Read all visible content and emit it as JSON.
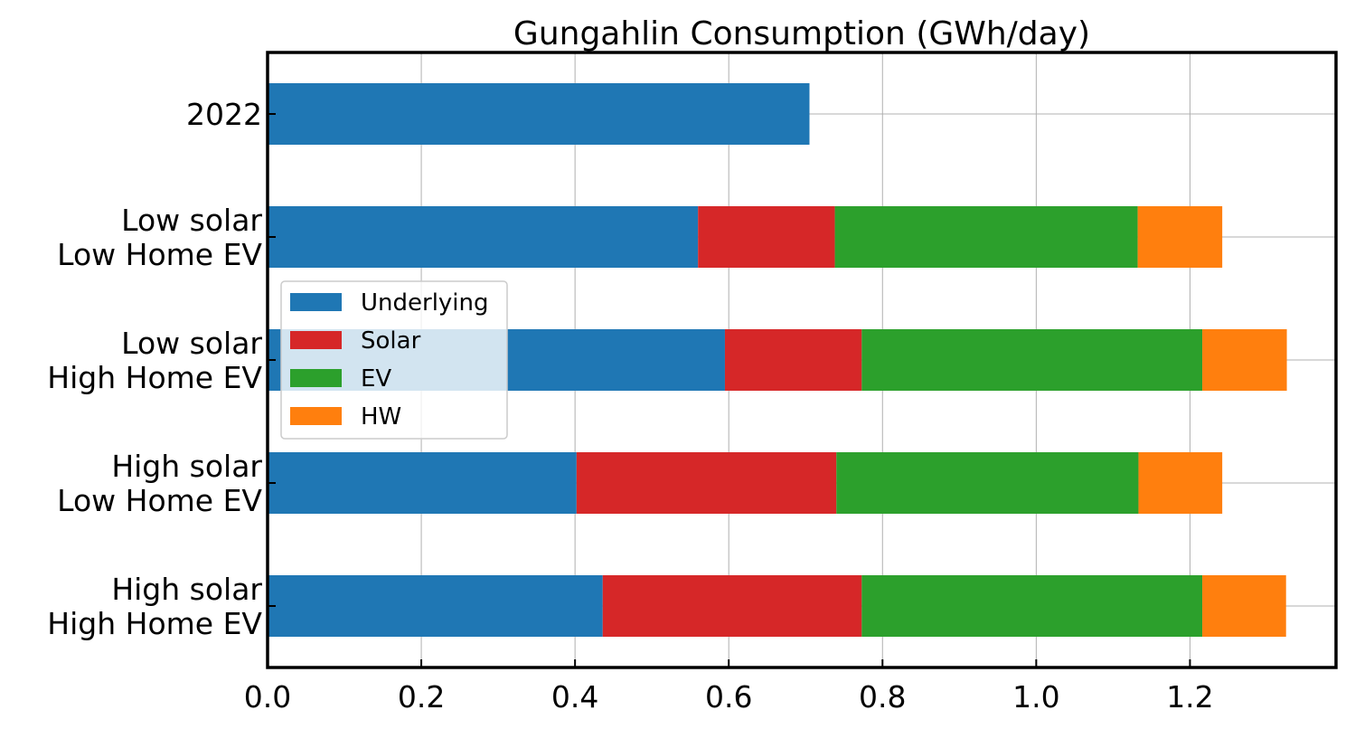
{
  "chart_data": {
    "type": "bar",
    "orientation": "horizontal",
    "stacked": true,
    "title": "Gungahlin Consumption (GWh/day)",
    "xlabel": "",
    "ylabel": "",
    "categories": [
      [
        "2022"
      ],
      [
        "Low solar",
        "Low Home EV"
      ],
      [
        "Low solar",
        "High Home EV"
      ],
      [
        "High solar",
        "Low Home EV"
      ],
      [
        "High solar",
        "High Home EV"
      ]
    ],
    "series": [
      {
        "name": "Underlying",
        "color": "#1f77b4",
        "values": [
          0.705,
          0.56,
          0.595,
          0.402,
          0.436
        ]
      },
      {
        "name": "Solar",
        "color": "#d62728",
        "values": [
          0,
          0.178,
          0.178,
          0.338,
          0.337
        ]
      },
      {
        "name": "EV",
        "color": "#2ca02c",
        "values": [
          0,
          0.394,
          0.443,
          0.393,
          0.443
        ]
      },
      {
        "name": "HW",
        "color": "#ff7f0e",
        "values": [
          0,
          0.11,
          0.11,
          0.109,
          0.109
        ]
      }
    ],
    "xlim": [
      0,
      1.39
    ],
    "xticks": [
      0.0,
      0.2,
      0.4,
      0.6,
      0.8,
      1.0,
      1.2
    ],
    "xtick_labels": [
      "0.0",
      "0.2",
      "0.4",
      "0.6",
      "0.8",
      "1.0",
      "1.2"
    ],
    "grid": true,
    "legend_position": "center-left"
  }
}
